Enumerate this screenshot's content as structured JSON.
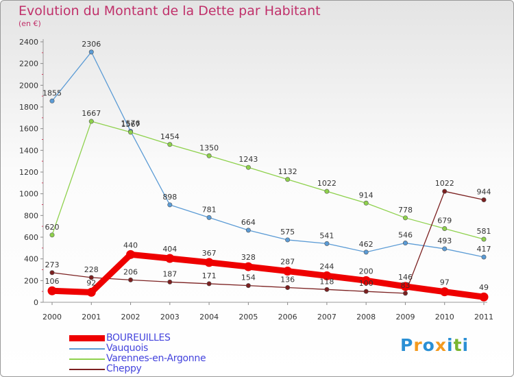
{
  "title": "Evolution du Montant de la Dette par Habitant",
  "unit_label": "(en €)",
  "logo": {
    "text": "Proxiti",
    "letters": [
      {
        "ch": "P",
        "color": "#2a8fd4"
      },
      {
        "ch": "r",
        "color": "#f39a1e"
      },
      {
        "ch": "o",
        "color": "#2a8fd4"
      },
      {
        "ch": "x",
        "color": "#f39a1e"
      },
      {
        "ch": "i",
        "color": "#2a8fd4"
      },
      {
        "ch": "t",
        "color": "#7ab52f"
      },
      {
        "ch": "i",
        "color": "#2a8fd4"
      }
    ]
  },
  "chart_data": {
    "type": "line",
    "title": "Evolution du Montant de la Dette par Habitant",
    "ylabel": "(en €)",
    "xlabel": "",
    "x": [
      2000,
      2001,
      2002,
      2003,
      2004,
      2005,
      2006,
      2007,
      2008,
      2009,
      2010,
      2011
    ],
    "ylim": [
      0,
      2400
    ],
    "yticks": [
      0,
      200,
      400,
      600,
      800,
      1000,
      1200,
      1400,
      1600,
      1800,
      2000,
      2200,
      2400
    ],
    "grid": false,
    "legend_position": "bottom-left",
    "series": [
      {
        "name": "BOUREUILLES",
        "color": "#ee0000",
        "emphasis": true,
        "values": [
          106,
          92,
          440,
          404,
          367,
          328,
          287,
          244,
          200,
          146,
          97,
          49
        ]
      },
      {
        "name": "Vauquois",
        "color": "#5b9bd5",
        "emphasis": false,
        "values": [
          1855,
          2306,
          1576,
          898,
          781,
          664,
          575,
          541,
          462,
          546,
          493,
          417
        ]
      },
      {
        "name": "Varennes-en-Argonne",
        "color": "#8ed14c",
        "emphasis": false,
        "values": [
          620,
          1667,
          1567,
          1454,
          1350,
          1243,
          1132,
          1022,
          914,
          778,
          679,
          581
        ]
      },
      {
        "name": "Cheppy",
        "color": "#7b2020",
        "emphasis": false,
        "values": [
          273,
          228,
          206,
          187,
          171,
          154,
          136,
          118,
          100,
          83,
          1022,
          944
        ]
      }
    ]
  }
}
